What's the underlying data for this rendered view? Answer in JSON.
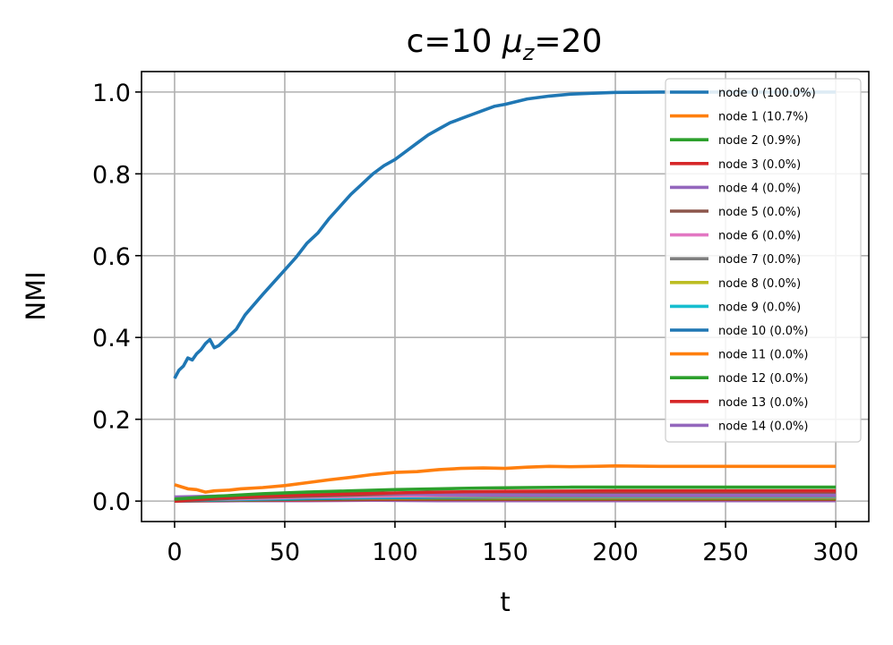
{
  "chart_data": {
    "type": "line",
    "title_main": "c=10 ",
    "title_symbol": "μ",
    "title_subscript": "z",
    "title_rest": "=20",
    "xlabel": "t",
    "ylabel": "NMI",
    "xlim": [
      -15,
      315
    ],
    "ylim": [
      -0.05,
      1.05
    ],
    "xticks": [
      0,
      50,
      100,
      150,
      200,
      250,
      300
    ],
    "xtick_labels": [
      "0",
      "50",
      "100",
      "150",
      "200",
      "250",
      "300"
    ],
    "yticks": [
      0.0,
      0.2,
      0.4,
      0.6,
      0.8,
      1.0
    ],
    "ytick_labels": [
      "0.0",
      "0.2",
      "0.4",
      "0.6",
      "0.8",
      "1.0"
    ],
    "grid": true,
    "legend_position": "top-right",
    "series": [
      {
        "name": "node 0 (100.0%)",
        "color": "#1f77b4",
        "points": [
          [
            0,
            0.3
          ],
          [
            2,
            0.32
          ],
          [
            4,
            0.33
          ],
          [
            6,
            0.35
          ],
          [
            8,
            0.345
          ],
          [
            10,
            0.36
          ],
          [
            12,
            0.37
          ],
          [
            14,
            0.385
          ],
          [
            16,
            0.395
          ],
          [
            18,
            0.375
          ],
          [
            20,
            0.38
          ],
          [
            22,
            0.39
          ],
          [
            25,
            0.405
          ],
          [
            28,
            0.42
          ],
          [
            32,
            0.455
          ],
          [
            36,
            0.48
          ],
          [
            40,
            0.505
          ],
          [
            45,
            0.535
          ],
          [
            50,
            0.565
          ],
          [
            55,
            0.595
          ],
          [
            60,
            0.63
          ],
          [
            65,
            0.655
          ],
          [
            70,
            0.69
          ],
          [
            75,
            0.72
          ],
          [
            80,
            0.75
          ],
          [
            85,
            0.775
          ],
          [
            90,
            0.8
          ],
          [
            95,
            0.82
          ],
          [
            100,
            0.835
          ],
          [
            105,
            0.855
          ],
          [
            110,
            0.875
          ],
          [
            115,
            0.895
          ],
          [
            120,
            0.91
          ],
          [
            125,
            0.925
          ],
          [
            130,
            0.935
          ],
          [
            135,
            0.945
          ],
          [
            140,
            0.955
          ],
          [
            145,
            0.965
          ],
          [
            150,
            0.97
          ],
          [
            160,
            0.983
          ],
          [
            170,
            0.99
          ],
          [
            180,
            0.995
          ],
          [
            190,
            0.997
          ],
          [
            200,
            0.999
          ],
          [
            220,
            1.0
          ],
          [
            250,
            1.0
          ],
          [
            300,
            1.0
          ]
        ]
      },
      {
        "name": "node 1 (10.7%)",
        "color": "#ff7f0e",
        "points": [
          [
            0,
            0.04
          ],
          [
            3,
            0.035
          ],
          [
            6,
            0.03
          ],
          [
            10,
            0.028
          ],
          [
            14,
            0.022
          ],
          [
            18,
            0.025
          ],
          [
            25,
            0.027
          ],
          [
            30,
            0.03
          ],
          [
            40,
            0.033
          ],
          [
            50,
            0.038
          ],
          [
            60,
            0.045
          ],
          [
            70,
            0.052
          ],
          [
            80,
            0.058
          ],
          [
            90,
            0.065
          ],
          [
            100,
            0.07
          ],
          [
            110,
            0.072
          ],
          [
            120,
            0.077
          ],
          [
            130,
            0.08
          ],
          [
            140,
            0.081
          ],
          [
            150,
            0.08
          ],
          [
            160,
            0.083
          ],
          [
            170,
            0.085
          ],
          [
            180,
            0.084
          ],
          [
            190,
            0.085
          ],
          [
            200,
            0.086
          ],
          [
            220,
            0.085
          ],
          [
            250,
            0.085
          ],
          [
            300,
            0.085
          ]
        ]
      },
      {
        "name": "node 2 (0.9%)",
        "color": "#2ca02c",
        "points": [
          [
            0,
            0.005
          ],
          [
            20,
            0.012
          ],
          [
            40,
            0.018
          ],
          [
            60,
            0.022
          ],
          [
            80,
            0.025
          ],
          [
            100,
            0.028
          ],
          [
            120,
            0.03
          ],
          [
            140,
            0.032
          ],
          [
            160,
            0.033
          ],
          [
            180,
            0.034
          ],
          [
            200,
            0.034
          ],
          [
            250,
            0.034
          ],
          [
            300,
            0.034
          ]
        ]
      },
      {
        "name": "node 3 (0.0%)",
        "color": "#d62728",
        "points": [
          [
            0,
            0.0
          ],
          [
            20,
            0.008
          ],
          [
            40,
            0.012
          ],
          [
            60,
            0.015
          ],
          [
            80,
            0.018
          ],
          [
            100,
            0.02
          ],
          [
            120,
            0.022
          ],
          [
            150,
            0.024
          ],
          [
            200,
            0.025
          ],
          [
            250,
            0.025
          ],
          [
            300,
            0.025
          ]
        ]
      },
      {
        "name": "node 4 (0.0%)",
        "color": "#9467bd",
        "points": [
          [
            0,
            0.01
          ],
          [
            20,
            0.012
          ],
          [
            40,
            0.014
          ],
          [
            60,
            0.018
          ],
          [
            80,
            0.02
          ],
          [
            100,
            0.018
          ],
          [
            120,
            0.016
          ],
          [
            150,
            0.015
          ],
          [
            200,
            0.014
          ],
          [
            250,
            0.014
          ],
          [
            300,
            0.014
          ]
        ]
      },
      {
        "name": "node 5 (0.0%)",
        "color": "#8c564b",
        "points": [
          [
            0,
            0.0
          ],
          [
            30,
            0.008
          ],
          [
            60,
            0.012
          ],
          [
            90,
            0.016
          ],
          [
            120,
            0.018
          ],
          [
            150,
            0.02
          ],
          [
            200,
            0.02
          ],
          [
            300,
            0.02
          ]
        ]
      },
      {
        "name": "node 6 (0.0%)",
        "color": "#e377c2",
        "points": [
          [
            0,
            0.002
          ],
          [
            30,
            0.006
          ],
          [
            60,
            0.01
          ],
          [
            90,
            0.012
          ],
          [
            120,
            0.014
          ],
          [
            150,
            0.015
          ],
          [
            200,
            0.015
          ],
          [
            300,
            0.015
          ]
        ]
      },
      {
        "name": "node 7 (0.0%)",
        "color": "#7f7f7f",
        "points": [
          [
            0,
            0.003
          ],
          [
            30,
            0.007
          ],
          [
            60,
            0.01
          ],
          [
            90,
            0.012
          ],
          [
            120,
            0.013
          ],
          [
            150,
            0.013
          ],
          [
            200,
            0.013
          ],
          [
            300,
            0.013
          ]
        ]
      },
      {
        "name": "node 8 (0.0%)",
        "color": "#bcbd22",
        "points": [
          [
            0,
            0.004
          ],
          [
            30,
            0.008
          ],
          [
            60,
            0.011
          ],
          [
            90,
            0.014
          ],
          [
            120,
            0.012
          ],
          [
            150,
            0.012
          ],
          [
            200,
            0.012
          ],
          [
            300,
            0.012
          ]
        ]
      },
      {
        "name": "node 9 (0.0%)",
        "color": "#17becf",
        "points": [
          [
            0,
            0.002
          ],
          [
            30,
            0.005
          ],
          [
            60,
            0.008
          ],
          [
            90,
            0.01
          ],
          [
            120,
            0.011
          ],
          [
            150,
            0.011
          ],
          [
            200,
            0.011
          ],
          [
            300,
            0.011
          ]
        ]
      },
      {
        "name": "node 10 (0.0%)",
        "color": "#1f77b4",
        "points": [
          [
            0,
            0.001
          ],
          [
            30,
            0.004
          ],
          [
            60,
            0.006
          ],
          [
            90,
            0.008
          ],
          [
            120,
            0.009
          ],
          [
            150,
            0.01
          ],
          [
            200,
            0.01
          ],
          [
            300,
            0.01
          ]
        ]
      },
      {
        "name": "node 11 (0.0%)",
        "color": "#ff7f0e",
        "points": [
          [
            0,
            0.002
          ],
          [
            30,
            0.004
          ],
          [
            60,
            0.006
          ],
          [
            90,
            0.007
          ],
          [
            120,
            0.008
          ],
          [
            150,
            0.008
          ],
          [
            200,
            0.008
          ],
          [
            300,
            0.008
          ]
        ]
      },
      {
        "name": "node 12 (0.0%)",
        "color": "#2ca02c",
        "points": [
          [
            0,
            0.001
          ],
          [
            30,
            0.003
          ],
          [
            60,
            0.005
          ],
          [
            90,
            0.006
          ],
          [
            120,
            0.006
          ],
          [
            150,
            0.006
          ],
          [
            200,
            0.006
          ],
          [
            300,
            0.006
          ]
        ]
      },
      {
        "name": "node 13 (0.0%)",
        "color": "#d62728",
        "points": [
          [
            0,
            0.0
          ],
          [
            30,
            0.002
          ],
          [
            60,
            0.003
          ],
          [
            90,
            0.004
          ],
          [
            120,
            0.004
          ],
          [
            150,
            0.004
          ],
          [
            200,
            0.004
          ],
          [
            300,
            0.004
          ]
        ]
      },
      {
        "name": "node 14 (0.0%)",
        "color": "#9467bd",
        "points": [
          [
            0,
            0.0
          ],
          [
            30,
            0.001
          ],
          [
            60,
            0.001
          ],
          [
            90,
            0.002
          ],
          [
            120,
            0.001
          ],
          [
            150,
            0.001
          ],
          [
            200,
            0.001
          ],
          [
            300,
            0.001
          ]
        ]
      }
    ]
  }
}
